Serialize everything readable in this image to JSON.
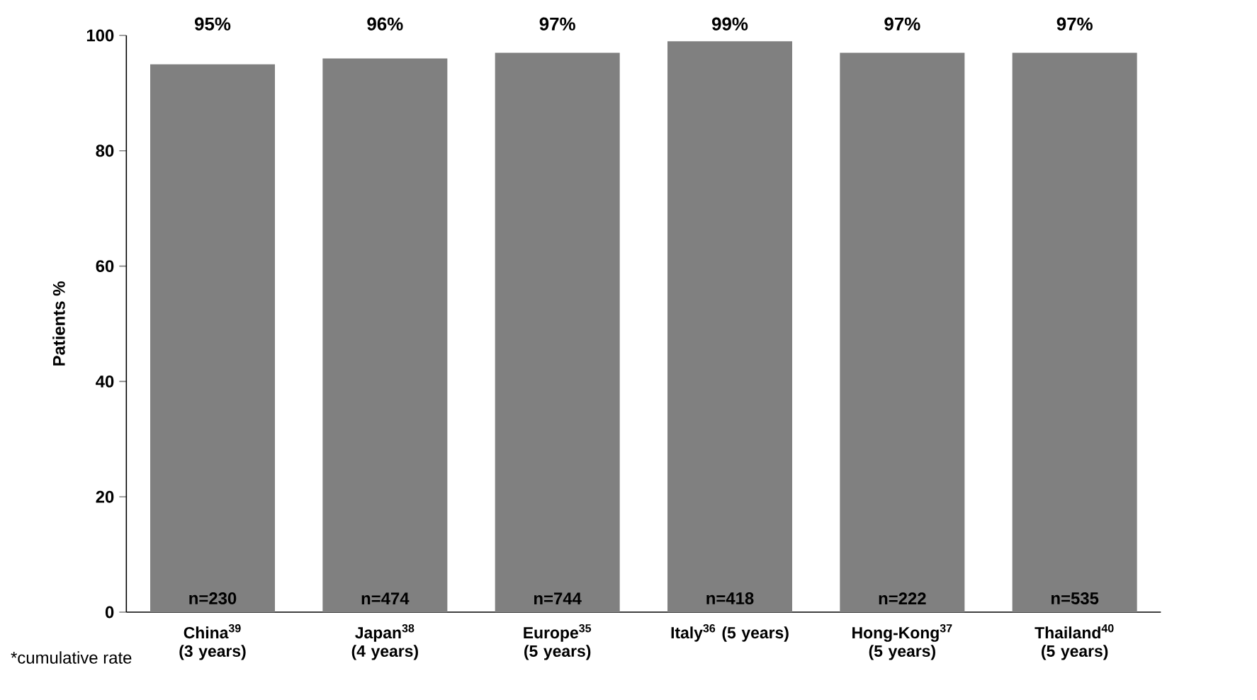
{
  "chart_data": {
    "type": "bar",
    "ylabel": "Patients %",
    "categories": [
      "China$^{39}$ (3 years)",
      "Japan$^{38}$ (4 years)",
      "Europe$^{35}$ (5 years)",
      "Italy$^{36}$ (5 years)",
      "Hong-Kong$^{37}$ (5 years)",
      "Thailand$^{40}$ (5 years)"
    ],
    "values": [
      95,
      96,
      97,
      99,
      97,
      97
    ],
    "value_labels": [
      "95%",
      "96%",
      "97%",
      "99%",
      "97%",
      "97%"
    ],
    "color": "#808080",
    "ylim": [
      0,
      100
    ],
    "yticks": [
      0,
      20,
      40,
      60,
      80,
      100
    ],
    "annotations": [
      "n=230",
      "n=474",
      "n=744",
      "n=418",
      "n=222",
      "n=535",
      "*cumulative rate"
    ]
  }
}
